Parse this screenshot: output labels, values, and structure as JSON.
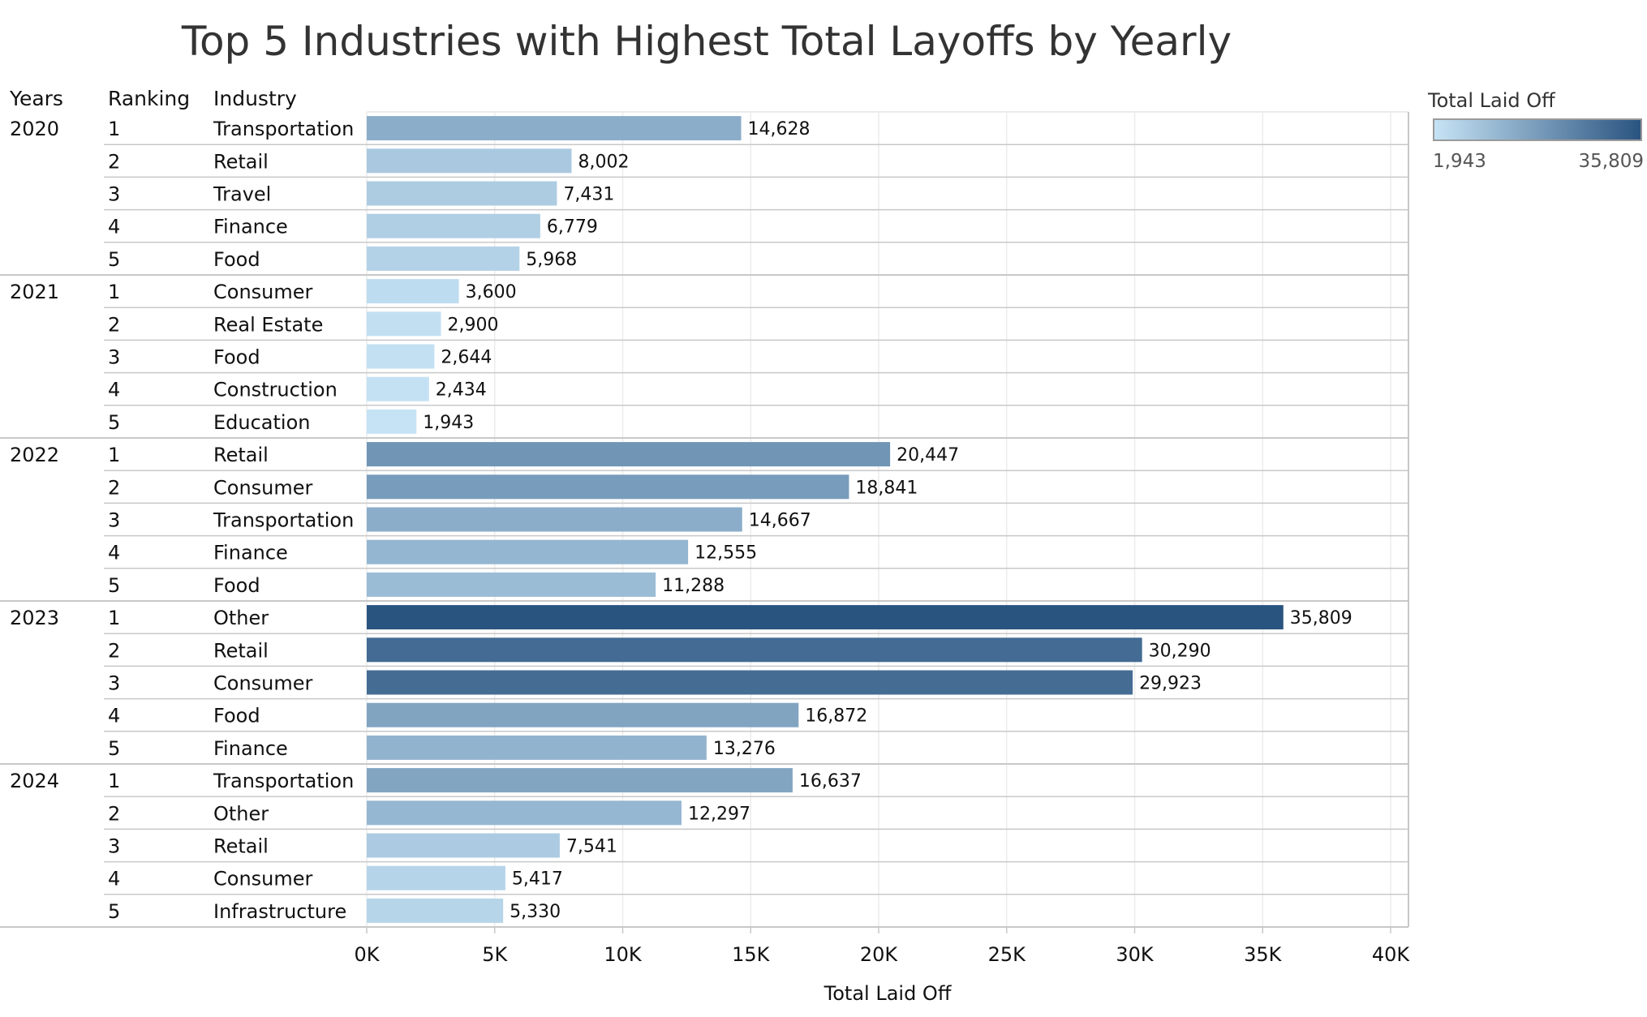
{
  "title": "Top 5 Industries with Highest Total Layoffs by Yearly",
  "headers": {
    "years": "Years",
    "ranking": "Ranking",
    "industry": "Industry"
  },
  "legend": {
    "title": "Total Laid Off",
    "min_label": "1,943",
    "max_label": "35,809",
    "color_low": "#c6e3f5",
    "color_high": "#2a5480"
  },
  "chart_data": {
    "type": "bar",
    "orientation": "horizontal",
    "title": "Top 5 Industries with Highest Total Layoffs by Yearly",
    "xlabel": "Total Laid Off",
    "xlim": [
      0,
      40000
    ],
    "x_ticks": [
      "0K",
      "5K",
      "10K",
      "15K",
      "20K",
      "25K",
      "30K",
      "35K",
      "40K"
    ],
    "grid": true,
    "legend": "top-right",
    "color_scale": {
      "min": 1943,
      "max": 35809,
      "low": "#c6e3f5",
      "high": "#2a5480"
    },
    "groups": [
      {
        "year": "2020",
        "rows": [
          {
            "rank": "1",
            "industry": "Transportation",
            "value": 14628,
            "label": "14,628"
          },
          {
            "rank": "2",
            "industry": "Retail",
            "value": 8002,
            "label": "8,002"
          },
          {
            "rank": "3",
            "industry": "Travel",
            "value": 7431,
            "label": "7,431"
          },
          {
            "rank": "4",
            "industry": "Finance",
            "value": 6779,
            "label": "6,779"
          },
          {
            "rank": "5",
            "industry": "Food",
            "value": 5968,
            "label": "5,968"
          }
        ]
      },
      {
        "year": "2021",
        "rows": [
          {
            "rank": "1",
            "industry": "Consumer",
            "value": 3600,
            "label": "3,600"
          },
          {
            "rank": "2",
            "industry": "Real Estate",
            "value": 2900,
            "label": "2,900"
          },
          {
            "rank": "3",
            "industry": "Food",
            "value": 2644,
            "label": "2,644"
          },
          {
            "rank": "4",
            "industry": "Construction",
            "value": 2434,
            "label": "2,434"
          },
          {
            "rank": "5",
            "industry": "Education",
            "value": 1943,
            "label": "1,943"
          }
        ]
      },
      {
        "year": "2022",
        "rows": [
          {
            "rank": "1",
            "industry": "Retail",
            "value": 20447,
            "label": "20,447"
          },
          {
            "rank": "2",
            "industry": "Consumer",
            "value": 18841,
            "label": "18,841"
          },
          {
            "rank": "3",
            "industry": "Transportation",
            "value": 14667,
            "label": "14,667"
          },
          {
            "rank": "4",
            "industry": "Finance",
            "value": 12555,
            "label": "12,555"
          },
          {
            "rank": "5",
            "industry": "Food",
            "value": 11288,
            "label": "11,288"
          }
        ]
      },
      {
        "year": "2023",
        "rows": [
          {
            "rank": "1",
            "industry": "Other",
            "value": 35809,
            "label": "35,809"
          },
          {
            "rank": "2",
            "industry": "Retail",
            "value": 30290,
            "label": "30,290"
          },
          {
            "rank": "3",
            "industry": "Consumer",
            "value": 29923,
            "label": "29,923"
          },
          {
            "rank": "4",
            "industry": "Food",
            "value": 16872,
            "label": "16,872"
          },
          {
            "rank": "5",
            "industry": "Finance",
            "value": 13276,
            "label": "13,276"
          }
        ]
      },
      {
        "year": "2024",
        "rows": [
          {
            "rank": "1",
            "industry": "Transportation",
            "value": 16637,
            "label": "16,637"
          },
          {
            "rank": "2",
            "industry": "Other",
            "value": 12297,
            "label": "12,297"
          },
          {
            "rank": "3",
            "industry": "Retail",
            "value": 7541,
            "label": "7,541"
          },
          {
            "rank": "4",
            "industry": "Consumer",
            "value": 5417,
            "label": "5,417"
          },
          {
            "rank": "5",
            "industry": "Infrastructure",
            "value": 5330,
            "label": "5,330"
          }
        ]
      }
    ]
  }
}
